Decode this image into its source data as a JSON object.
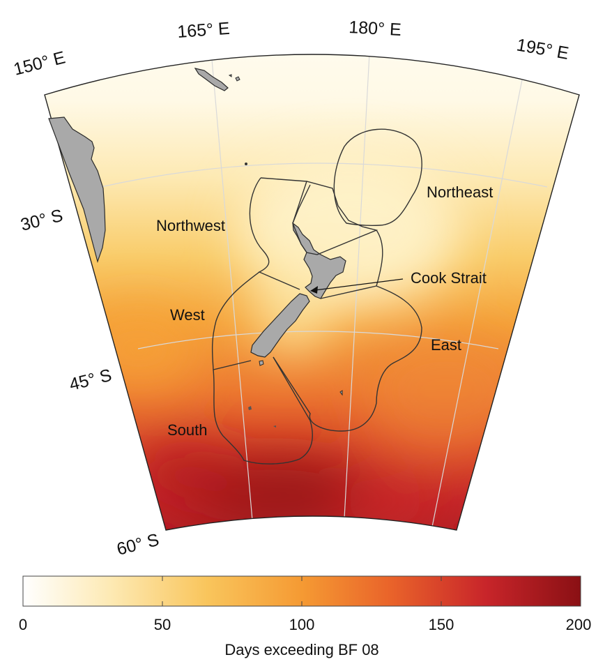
{
  "longitude_labels": [
    {
      "key": "lon150",
      "text": "150° E",
      "deg": "150",
      "hem": "E"
    },
    {
      "key": "lon165",
      "text": "165° E",
      "deg": "165",
      "hem": "E"
    },
    {
      "key": "lon180",
      "text": "180° E",
      "deg": "180",
      "hem": "E"
    },
    {
      "key": "lon195",
      "text": "195° E",
      "deg": "195",
      "hem": "E"
    }
  ],
  "latitude_labels": [
    {
      "key": "lat30",
      "text": "30° S",
      "deg": "30",
      "hem": "S"
    },
    {
      "key": "lat45",
      "text": "45° S",
      "deg": "45",
      "hem": "S"
    },
    {
      "key": "lat60",
      "text": "60° S",
      "deg": "60",
      "hem": "S"
    }
  ],
  "regions": {
    "northeast": "Northeast",
    "northwest": "Northwest",
    "cook_strait": "Cook Strait",
    "west": "West",
    "east": "East",
    "south": "South"
  },
  "colorbar": {
    "title": "Days exceeding BF 08",
    "min": 0,
    "max": 200,
    "ticks": [
      "0",
      "50",
      "100",
      "150",
      "200"
    ],
    "colors": [
      "#ffffff",
      "#fde9b2",
      "#f9c55c",
      "#f59a33",
      "#e9632a",
      "#c8252a",
      "#8a1014"
    ]
  },
  "colors": {
    "land": "#a9a9a9",
    "outline": "#3a3a3a",
    "graticule": "#d6d6d6"
  }
}
